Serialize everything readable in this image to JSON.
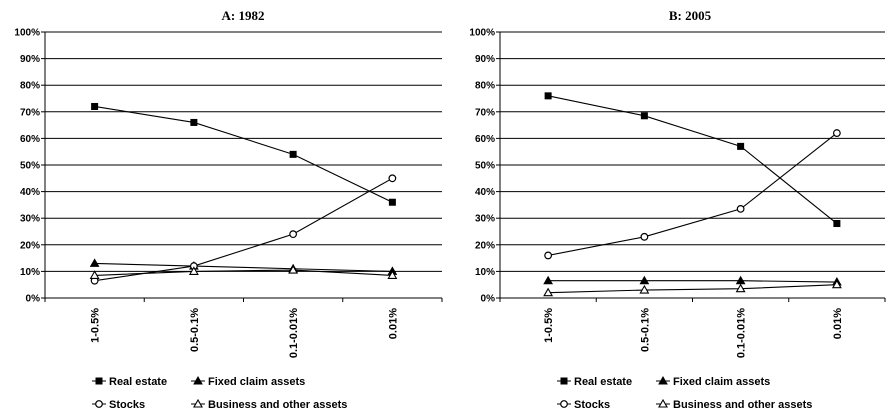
{
  "chart_data": [
    {
      "type": "line",
      "title": "A: 1982",
      "categories": [
        "1-0.5%",
        "0.5-0.1%",
        "0.1-0.01%",
        "0.01%"
      ],
      "ylim": [
        0,
        100
      ],
      "yticks": [
        "0%",
        "10%",
        "20%",
        "30%",
        "40%",
        "50%",
        "60%",
        "70%",
        "80%",
        "90%",
        "100%"
      ],
      "grid": true,
      "legend_position": "bottom",
      "series": [
        {
          "name": "Real estate",
          "marker": "square-filled",
          "values": [
            72,
            66,
            54,
            36
          ]
        },
        {
          "name": "Fixed claim assets",
          "marker": "triangle-filled",
          "values": [
            13,
            12,
            11,
            10
          ]
        },
        {
          "name": "Stocks",
          "marker": "circle-open",
          "values": [
            6.5,
            12,
            24,
            45
          ]
        },
        {
          "name": "Business and other assets",
          "marker": "triangle-open",
          "values": [
            8.5,
            10,
            10.5,
            8.5
          ]
        }
      ]
    },
    {
      "type": "line",
      "title": "B: 2005",
      "categories": [
        "1-0.5%",
        "0.5-0.1%",
        "0.1-0.01%",
        "0.01%"
      ],
      "ylim": [
        0,
        100
      ],
      "yticks": [
        "0%",
        "10%",
        "20%",
        "30%",
        "40%",
        "50%",
        "60%",
        "70%",
        "80%",
        "90%",
        "100%"
      ],
      "grid": true,
      "legend_position": "bottom",
      "series": [
        {
          "name": "Real estate",
          "marker": "square-filled",
          "values": [
            76,
            68.5,
            57,
            28
          ]
        },
        {
          "name": "Fixed claim assets",
          "marker": "triangle-filled",
          "values": [
            6.5,
            6.5,
            6.5,
            6
          ]
        },
        {
          "name": "Stocks",
          "marker": "circle-open",
          "values": [
            16,
            23,
            33.5,
            62
          ]
        },
        {
          "name": "Business and other assets",
          "marker": "triangle-open",
          "values": [
            2,
            3,
            3.5,
            5
          ]
        }
      ]
    }
  ]
}
